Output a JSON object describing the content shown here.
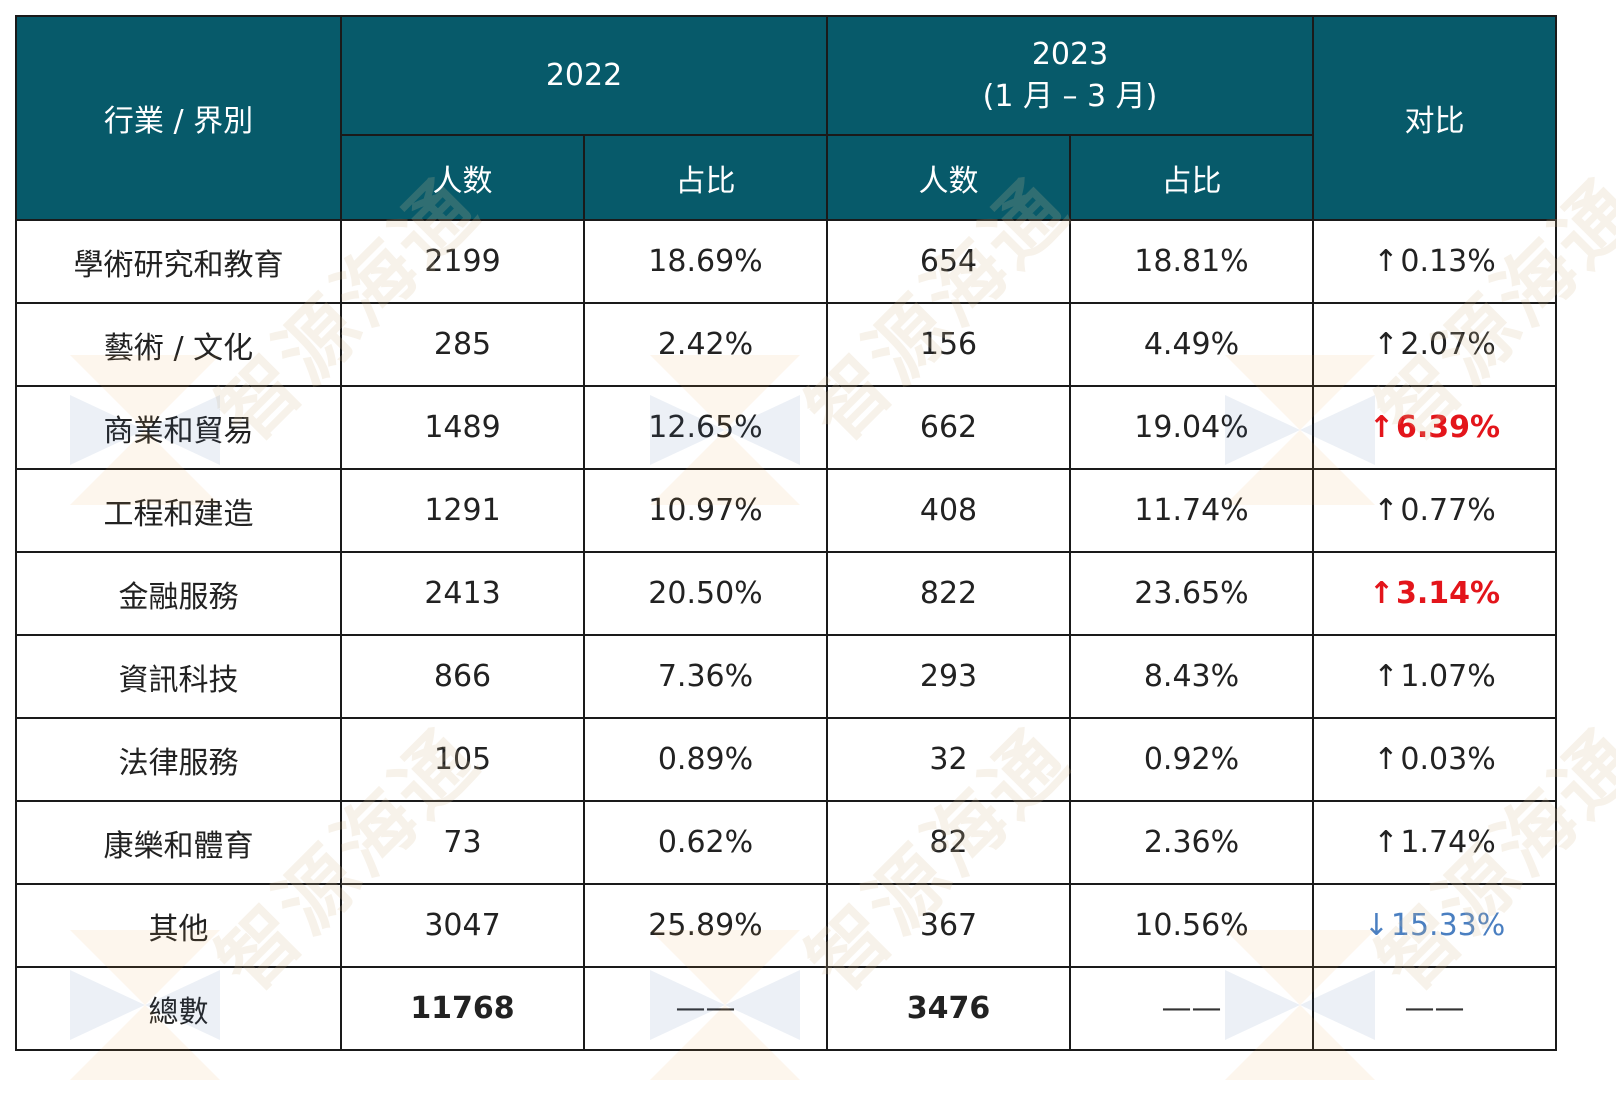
{
  "header": {
    "industry": "行業 / 界別",
    "year_2022": "2022",
    "year_2023_line1": "2023",
    "year_2023_line2": "(1 月 – 3 月)",
    "compare": "对比",
    "people": "人数",
    "share": "占比"
  },
  "rows": [
    {
      "industry": "學術研究和教育",
      "n2022": "2199",
      "p2022": "18.69%",
      "n2023": "654",
      "p2023": "18.81%",
      "arrow": "↑",
      "cmp": "0.13%",
      "cmp_style": "normal"
    },
    {
      "industry": "藝術 / 文化",
      "n2022": "285",
      "p2022": "2.42%",
      "n2023": "156",
      "p2023": "4.49%",
      "arrow": "↑",
      "cmp": "2.07%",
      "cmp_style": "normal"
    },
    {
      "industry": "商業和貿易",
      "n2022": "1489",
      "p2022": "12.65%",
      "n2023": "662",
      "p2023": "19.04%",
      "arrow": "↑",
      "cmp": "6.39%",
      "cmp_style": "red"
    },
    {
      "industry": "工程和建造",
      "n2022": "1291",
      "p2022": "10.97%",
      "n2023": "408",
      "p2023": "11.74%",
      "arrow": "↑",
      "cmp": "0.77%",
      "cmp_style": "normal"
    },
    {
      "industry": "金融服務",
      "n2022": "2413",
      "p2022": "20.50%",
      "n2023": "822",
      "p2023": "23.65%",
      "arrow": "↑",
      "cmp": "3.14%",
      "cmp_style": "red"
    },
    {
      "industry": "資訊科技",
      "n2022": "866",
      "p2022": "7.36%",
      "n2023": "293",
      "p2023": "8.43%",
      "arrow": "↑",
      "cmp": "1.07%",
      "cmp_style": "normal"
    },
    {
      "industry": "法律服務",
      "n2022": "105",
      "p2022": "0.89%",
      "n2023": "32",
      "p2023": "0.92%",
      "arrow": "↑",
      "cmp": "0.03%",
      "cmp_style": "normal"
    },
    {
      "industry": "康樂和體育",
      "n2022": "73",
      "p2022": "0.62%",
      "n2023": "82",
      "p2023": "2.36%",
      "arrow": "↑",
      "cmp": "1.74%",
      "cmp_style": "normal"
    },
    {
      "industry": "其他",
      "n2022": "3047",
      "p2022": "25.89%",
      "n2023": "367",
      "p2023": "10.56%",
      "arrow": "↓",
      "cmp": "15.33%",
      "cmp_style": "blue"
    }
  ],
  "total": {
    "label": "總數",
    "n2022": "11768",
    "p2022": "——",
    "n2023": "3476",
    "p2023": "——",
    "cmp": "——"
  },
  "watermark": {
    "text": "智源海通",
    "color": "#d6be96"
  },
  "colors": {
    "header_bg": "#075a6a",
    "red": "#e3151b",
    "blue": "#4a7fc1"
  }
}
